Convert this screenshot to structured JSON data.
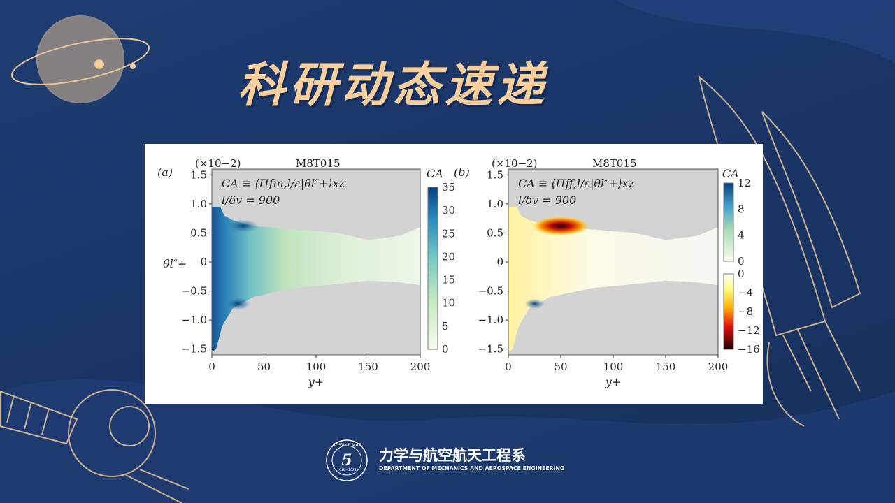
{
  "page": {
    "title": "科研动态速递",
    "footer_cn": "力学与航空航天工程系",
    "footer_en": "DEPARTMENT OF MECHANICS AND AEROSPACE ENGINEERING",
    "logo_text": "SUSTech MAE",
    "logo_years": "2016—2021",
    "logo_number": "5",
    "colors": {
      "background": "#1a3566",
      "title": "#f6cf9c",
      "line_art": "#e8c79a"
    }
  },
  "chart_data": [
    {
      "type": "heatmap",
      "panel_label": "(a)",
      "title": "M8T015",
      "multiplier": "(×10−2)",
      "annotation_1": "CA ≡ ⟨Πfm,l/ε|θl″+⟩xz",
      "annotation_2": "l/δv = 900",
      "xlabel": "y+",
      "ylabel": "θl″+",
      "xlim": [
        0,
        200
      ],
      "ylim": [
        -1.6,
        1.6
      ],
      "x_ticks": [
        "0",
        "50",
        "100",
        "150",
        "200"
      ],
      "y_ticks": [
        "1.5",
        "1.0",
        "0.5",
        "0",
        "−0.5",
        "−1.0",
        "−1.5"
      ],
      "colorbar_label": "CA",
      "colorbar_ticks": [
        "35",
        "30",
        "25",
        "20",
        "15",
        "10",
        "5",
        "0"
      ],
      "colorbar_range": [
        0,
        35
      ]
    },
    {
      "type": "heatmap",
      "panel_label": "(b)",
      "title": "M8T015",
      "multiplier": "(×10−2)",
      "annotation_1": "CA ≡ ⟨Πff,l/ε|θl″+⟩xz",
      "annotation_2": "l/δv = 900",
      "xlabel": "y+",
      "xlim": [
        0,
        200
      ],
      "ylim": [
        -1.6,
        1.6
      ],
      "x_ticks": [
        "0",
        "50",
        "100",
        "150",
        "200"
      ],
      "y_ticks": [
        "1.5",
        "1.0",
        "0.5",
        "0",
        "−0.5",
        "−1.0",
        "−1.5"
      ],
      "colorbar_label": "CA",
      "colorbar_pos_ticks": [
        "12",
        "8",
        "4",
        "0"
      ],
      "colorbar_neg_ticks": [
        "0",
        "−4",
        "−8",
        "−12",
        "−16"
      ],
      "colorbar_range": [
        -16,
        12
      ]
    }
  ]
}
